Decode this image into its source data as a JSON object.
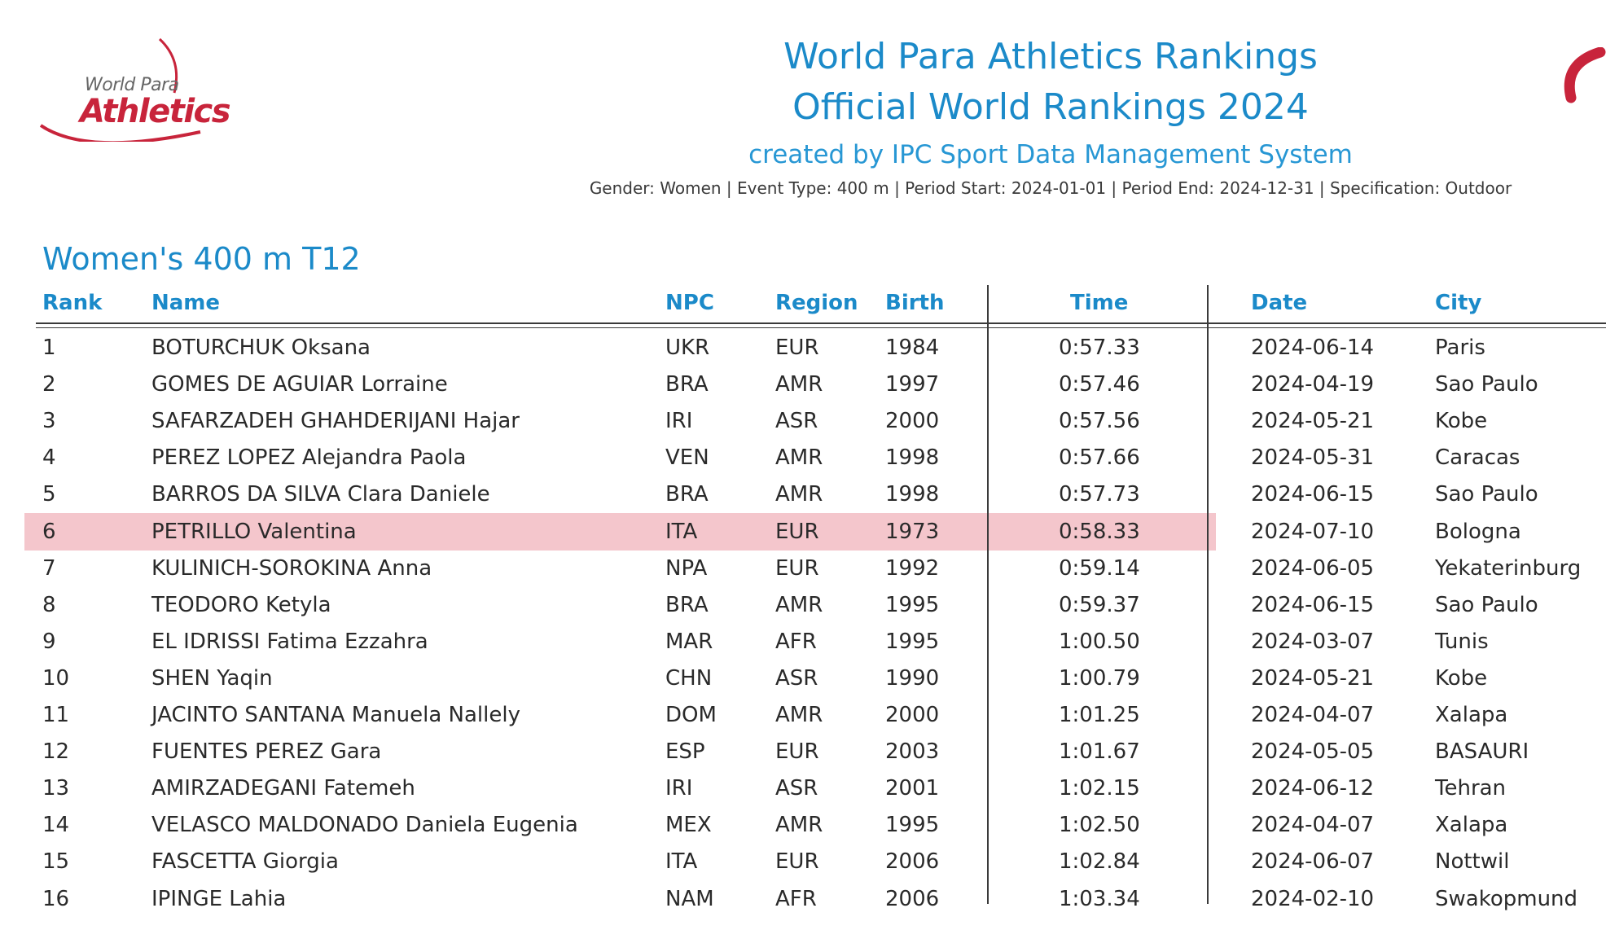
{
  "logo": {
    "line1": "World Para",
    "line2": "Athletics",
    "icon": "world-para-athletics-logo"
  },
  "header": {
    "title1": "World Para Athletics Rankings",
    "title2": "Official World Rankings 2024",
    "created_by": "created by IPC Sport Data Management System",
    "meta": "Gender: Women | Event Type: 400 m | Period Start: 2024-01-01 | Period End: 2024-12-31 | Specification: Outdoor"
  },
  "colors": {
    "accent_blue": "#1b8ac9",
    "brand_red": "#c8243b",
    "highlight": "#f4c6cc"
  },
  "section": {
    "title": "Women's 400 m T12"
  },
  "table": {
    "columns": {
      "rank": "Rank",
      "name": "Name",
      "npc": "NPC",
      "region": "Region",
      "birth": "Birth",
      "time": "Time",
      "date": "Date",
      "city": "City"
    },
    "highlighted_rank": "6",
    "rows": [
      {
        "rank": "1",
        "name": "BOTURCHUK Oksana",
        "npc": "UKR",
        "region": "EUR",
        "birth": "1984",
        "time": "0:57.33",
        "date": "2024-06-14",
        "city": "Paris"
      },
      {
        "rank": "2",
        "name": "GOMES DE AGUIAR Lorraine",
        "npc": "BRA",
        "region": "AMR",
        "birth": "1997",
        "time": "0:57.46",
        "date": "2024-04-19",
        "city": "Sao Paulo"
      },
      {
        "rank": "3",
        "name": "SAFARZADEH GHAHDERIJANI Hajar",
        "npc": "IRI",
        "region": "ASR",
        "birth": "2000",
        "time": "0:57.56",
        "date": "2024-05-21",
        "city": "Kobe"
      },
      {
        "rank": "4",
        "name": "PEREZ LOPEZ Alejandra Paola",
        "npc": "VEN",
        "region": "AMR",
        "birth": "1998",
        "time": "0:57.66",
        "date": "2024-05-31",
        "city": "Caracas"
      },
      {
        "rank": "5",
        "name": "BARROS DA SILVA Clara Daniele",
        "npc": "BRA",
        "region": "AMR",
        "birth": "1998",
        "time": "0:57.73",
        "date": "2024-06-15",
        "city": "Sao Paulo"
      },
      {
        "rank": "6",
        "name": "PETRILLO Valentina",
        "npc": "ITA",
        "region": "EUR",
        "birth": "1973",
        "time": "0:58.33",
        "date": "2024-07-10",
        "city": "Bologna"
      },
      {
        "rank": "7",
        "name": "KULINICH-SOROKINA Anna",
        "npc": "NPA",
        "region": "EUR",
        "birth": "1992",
        "time": "0:59.14",
        "date": "2024-06-05",
        "city": "Yekaterinburg"
      },
      {
        "rank": "8",
        "name": "TEODORO Ketyla",
        "npc": "BRA",
        "region": "AMR",
        "birth": "1995",
        "time": "0:59.37",
        "date": "2024-06-15",
        "city": "Sao Paulo"
      },
      {
        "rank": "9",
        "name": "EL IDRISSI Fatima Ezzahra",
        "npc": "MAR",
        "region": "AFR",
        "birth": "1995",
        "time": "1:00.50",
        "date": "2024-03-07",
        "city": "Tunis"
      },
      {
        "rank": "10",
        "name": "SHEN Yaqin",
        "npc": "CHN",
        "region": "ASR",
        "birth": "1990",
        "time": "1:00.79",
        "date": "2024-05-21",
        "city": "Kobe"
      },
      {
        "rank": "11",
        "name": "JACINTO SANTANA Manuela Nallely",
        "npc": "DOM",
        "region": "AMR",
        "birth": "2000",
        "time": "1:01.25",
        "date": "2024-04-07",
        "city": "Xalapa"
      },
      {
        "rank": "12",
        "name": "FUENTES PEREZ Gara",
        "npc": "ESP",
        "region": "EUR",
        "birth": "2003",
        "time": "1:01.67",
        "date": "2024-05-05",
        "city": "BASAURI"
      },
      {
        "rank": "13",
        "name": "AMIRZADEGANI Fatemeh",
        "npc": "IRI",
        "region": "ASR",
        "birth": "2001",
        "time": "1:02.15",
        "date": "2024-06-12",
        "city": "Tehran"
      },
      {
        "rank": "14",
        "name": "VELASCO MALDONADO Daniela Eugenia",
        "npc": "MEX",
        "region": "AMR",
        "birth": "1995",
        "time": "1:02.50",
        "date": "2024-04-07",
        "city": "Xalapa"
      },
      {
        "rank": "15",
        "name": "FASCETTA Giorgia",
        "npc": "ITA",
        "region": "EUR",
        "birth": "2006",
        "time": "1:02.84",
        "date": "2024-06-07",
        "city": "Nottwil"
      },
      {
        "rank": "16",
        "name": "IPINGE Lahia",
        "npc": "NAM",
        "region": "AFR",
        "birth": "2006",
        "time": "1:03.34",
        "date": "2024-02-10",
        "city": "Swakopmund"
      }
    ]
  }
}
